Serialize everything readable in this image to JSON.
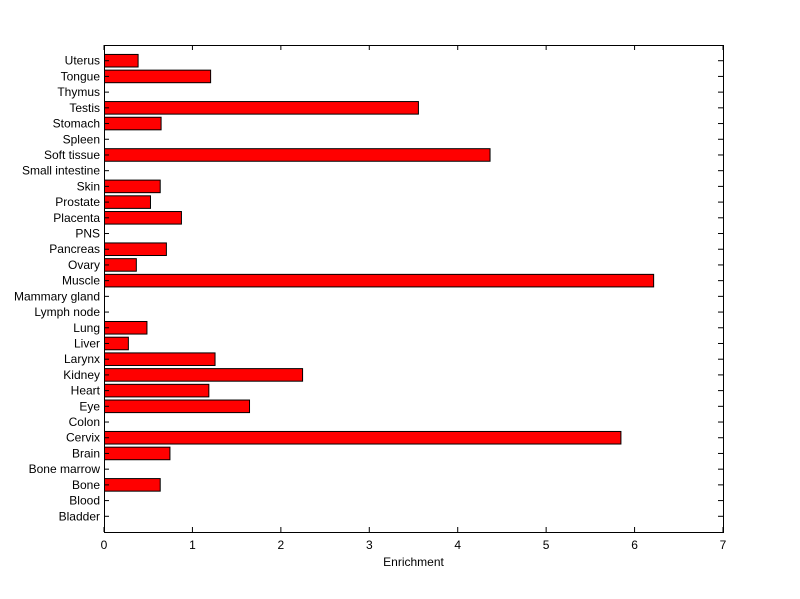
{
  "chart_data": {
    "type": "bar",
    "orientation": "horizontal",
    "title": "",
    "xlabel": "Enrichment",
    "ylabel": "",
    "xlim": [
      0,
      7
    ],
    "xticks": [
      0,
      1,
      2,
      3,
      4,
      5,
      6,
      7
    ],
    "grid": false,
    "legend": "none",
    "bar_color": "#ff0000",
    "bar_edge_color": "#000000",
    "categories": [
      "Bladder",
      "Blood",
      "Bone",
      "Bone marrow",
      "Brain",
      "Cervix",
      "Colon",
      "Eye",
      "Heart",
      "Kidney",
      "Larynx",
      "Liver",
      "Lung",
      "Lymph node",
      "Mammary gland",
      "Muscle",
      "Ovary",
      "Pancreas",
      "PNS",
      "Placenta",
      "Prostate",
      "Skin",
      "Small intestine",
      "Soft tissue",
      "Spleen",
      "Stomach",
      "Testis",
      "Thymus",
      "Tongue",
      "Uterus"
    ],
    "values": [
      0,
      0,
      0.63,
      0,
      0.74,
      5.84,
      0,
      1.64,
      1.18,
      2.24,
      1.25,
      0.27,
      0.48,
      0,
      0,
      6.21,
      0.36,
      0.7,
      0,
      0.87,
      0.52,
      0.63,
      0,
      4.36,
      0,
      0.64,
      3.55,
      0,
      1.2,
      0.38
    ]
  }
}
